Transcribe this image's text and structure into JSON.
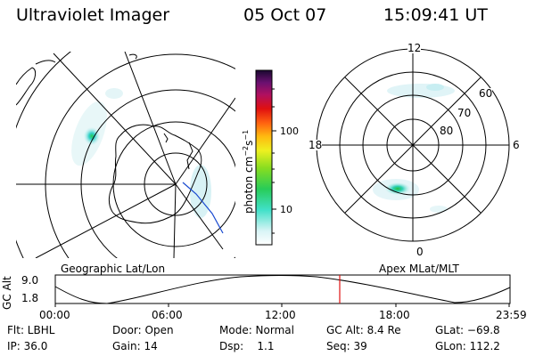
{
  "header": {
    "title": "Ultraviolet Imager",
    "date": "05 Oct 07",
    "time": "15:09:41 UT"
  },
  "colorbar": {
    "label": "photon cm⁻²s⁻¹",
    "ticks": [
      "100",
      "10"
    ]
  },
  "left_panel": {
    "label": "Geographic Lat/Lon"
  },
  "right_panel": {
    "label": "Apex MLat/MLT",
    "mlt_labels": {
      "top": "12",
      "left": "18",
      "right": "6",
      "bottom": "0"
    },
    "lat_labels": [
      "60",
      "70",
      "80"
    ]
  },
  "timeline": {
    "ylabel": "GC Alt",
    "yticks": [
      "9.0",
      "1.8"
    ],
    "xticks": [
      "00:00",
      "06:00",
      "12:00",
      "18:00",
      "23:59"
    ],
    "current_marker": "15:09:41",
    "marker_color": "#e01010"
  },
  "status": {
    "flt": "Flt: LBHL",
    "door": "Door: Open",
    "mode": "Mode: Normal",
    "gc_alt": "GC Alt: 8.4 Re",
    "glat": "GLat: −69.8",
    "ip": "IP: 36.0",
    "gain": "Gain: 14",
    "dsp": "Dsp:    1.1",
    "seq": "Seq: 39",
    "glon": "GLon: 112.2"
  }
}
